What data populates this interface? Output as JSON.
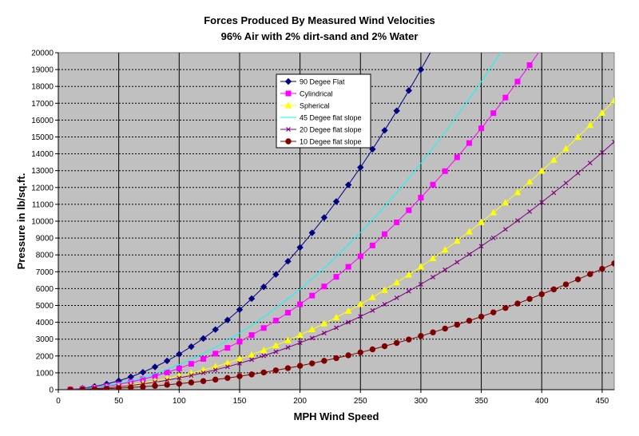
{
  "chart_data": {
    "type": "line",
    "title": "Forces Produced By Measured Wind Velocities",
    "subtitle": "96% Air with 2%  dirt-sand and 2% Water",
    "xlabel": "MPH Wind Speed",
    "ylabel": "Pressure in lb/sq.ft.",
    "xlim": [
      0,
      460
    ],
    "ylim": [
      0,
      20000
    ],
    "x_ticks": [
      0,
      50,
      100,
      150,
      200,
      250,
      300,
      350,
      400,
      450
    ],
    "y_ticks": [
      0,
      1000,
      2000,
      3000,
      4000,
      5000,
      6000,
      7000,
      8000,
      9000,
      10000,
      11000,
      12000,
      13000,
      14000,
      15000,
      16000,
      17000,
      18000,
      19000,
      20000
    ],
    "x_tick_labels": [
      "0",
      "50",
      "100",
      "150",
      "200",
      "250",
      "300",
      "350",
      "400",
      "450"
    ],
    "y_tick_labels": [
      "0",
      "1000",
      "2000",
      "3000",
      "4000",
      "5000",
      "6000",
      "7000",
      "8000",
      "9000",
      "10000",
      "11000",
      "12000",
      "13000",
      "14000",
      "15000",
      "16000",
      "17000",
      "18000",
      "19000",
      "20000"
    ],
    "grid": true,
    "plot_background": "#c0c0c0",
    "legend_position": "inside top-center",
    "series": [
      {
        "name": "90 Degee Flat",
        "color": "#000080",
        "marker": "diamond",
        "x": [
          10,
          20,
          30,
          40,
          50,
          60,
          70,
          80,
          90,
          100,
          110,
          120,
          130,
          140,
          150,
          160,
          170,
          180,
          190,
          200,
          210,
          220,
          230,
          240,
          250,
          260,
          270,
          280,
          290,
          300,
          310
        ],
        "values": [
          21,
          85,
          190,
          338,
          528,
          760,
          1034,
          1351,
          1710,
          2111,
          2554,
          3040,
          3568,
          4137,
          4750,
          5404,
          6101,
          6840,
          7621,
          8444,
          9310,
          10217,
          11167,
          12160,
          13194,
          14270,
          15389,
          16550,
          17754,
          19000,
          20284
        ],
        "markers_until": 300
      },
      {
        "name": "Cylindrical",
        "color": "#ff00ff",
        "marker": "square",
        "x": [
          10,
          20,
          30,
          40,
          50,
          60,
          70,
          80,
          90,
          100,
          110,
          120,
          130,
          140,
          150,
          160,
          170,
          180,
          190,
          200,
          210,
          220,
          230,
          240,
          250,
          260,
          270,
          280,
          290,
          300,
          310,
          320,
          330,
          340,
          350,
          360,
          370,
          380,
          390,
          400
        ],
        "values": [
          13,
          51,
          114,
          203,
          317,
          456,
          620,
          810,
          1026,
          1266,
          1532,
          1824,
          2140,
          2482,
          2849,
          3242,
          3660,
          4103,
          4572,
          5066,
          5585,
          6129,
          6699,
          7294,
          7915,
          8561,
          9232,
          9929,
          10651,
          11398,
          12171,
          12969,
          13792,
          14640,
          15514,
          16413,
          17338,
          18288,
          19263,
          20264
        ],
        "markers_until": 390
      },
      {
        "name": "Spherical",
        "color": "#ffff00",
        "marker": "triangle",
        "x": [
          10,
          20,
          30,
          40,
          50,
          60,
          70,
          80,
          90,
          100,
          110,
          120,
          130,
          140,
          150,
          160,
          170,
          180,
          190,
          200,
          210,
          220,
          230,
          240,
          250,
          260,
          270,
          280,
          290,
          300,
          310,
          320,
          330,
          340,
          350,
          360,
          370,
          380,
          390,
          400,
          410,
          420,
          430,
          440,
          450,
          460
        ],
        "values": [
          8,
          32,
          73,
          130,
          203,
          292,
          397,
          519,
          657,
          811,
          981,
          1168,
          1371,
          1590,
          1825,
          2076,
          2344,
          2628,
          2928,
          3244,
          3577,
          3926,
          4291,
          4672,
          5070,
          5483,
          5913,
          6360,
          6822,
          7300,
          7795,
          8306,
          8834,
          9377,
          9937,
          10513,
          11105,
          11713,
          12338,
          12978,
          13635,
          14308,
          14997,
          15702,
          16424,
          17162
        ]
      },
      {
        "name": "45 Degee flat slope",
        "color": "#00ffff",
        "marker": "none",
        "x": [
          10,
          20,
          30,
          40,
          50,
          60,
          70,
          80,
          90,
          100,
          110,
          120,
          130,
          140,
          150,
          160,
          170,
          180,
          190,
          200,
          210,
          220,
          230,
          240,
          250,
          260,
          270,
          280,
          290,
          300,
          310,
          320,
          330,
          340,
          350,
          360,
          370
        ],
        "values": [
          15,
          60,
          134,
          239,
          373,
          537,
          731,
          955,
          1208,
          1492,
          1805,
          2148,
          2521,
          2924,
          3357,
          3820,
          4312,
          4835,
          5387,
          5969,
          6581,
          7223,
          7894,
          8596,
          9327,
          10088,
          10879,
          11700,
          12551,
          13432,
          14343,
          15284,
          16254,
          17254,
          18285,
          19345,
          20435
        ]
      },
      {
        "name": "20 Degee flat slope",
        "color": "#800080",
        "marker": "x",
        "x": [
          10,
          20,
          30,
          40,
          50,
          60,
          70,
          80,
          90,
          100,
          110,
          120,
          130,
          140,
          150,
          160,
          170,
          180,
          190,
          200,
          210,
          220,
          230,
          240,
          250,
          260,
          270,
          280,
          290,
          300,
          310,
          320,
          330,
          340,
          350,
          360,
          370,
          380,
          390,
          400,
          410,
          420,
          430,
          440,
          450,
          460
        ],
        "values": [
          7,
          28,
          63,
          111,
          174,
          250,
          341,
          445,
          563,
          695,
          841,
          1001,
          1175,
          1362,
          1564,
          1779,
          2009,
          2252,
          2509,
          2780,
          3065,
          3364,
          3677,
          4004,
          4344,
          4699,
          5067,
          5450,
          5846,
          6256,
          6680,
          7118,
          7570,
          8036,
          8516,
          9009,
          9517,
          10038,
          10573,
          11123,
          11686,
          12263,
          12853,
          13458,
          14077,
          14709
        ]
      },
      {
        "name": "10 Degee flat slope",
        "color": "#800000",
        "marker": "circle",
        "x": [
          10,
          20,
          30,
          40,
          50,
          60,
          70,
          80,
          90,
          100,
          110,
          120,
          130,
          140,
          150,
          160,
          170,
          180,
          190,
          200,
          210,
          220,
          230,
          240,
          250,
          260,
          270,
          280,
          290,
          300,
          310,
          320,
          330,
          340,
          350,
          360,
          370,
          380,
          390,
          400,
          410,
          420,
          430,
          440,
          450,
          460
        ],
        "values": [
          4,
          14,
          32,
          57,
          89,
          128,
          174,
          227,
          287,
          354,
          428,
          510,
          598,
          694,
          797,
          906,
          1023,
          1147,
          1278,
          1417,
          1562,
          1714,
          1873,
          2040,
          2213,
          2394,
          2582,
          2776,
          2978,
          3187,
          3403,
          3626,
          3857,
          4094,
          4338,
          4590,
          4849,
          5114,
          5387,
          5667,
          5954,
          6248,
          6549,
          6857,
          7172,
          7494
        ]
      }
    ]
  }
}
